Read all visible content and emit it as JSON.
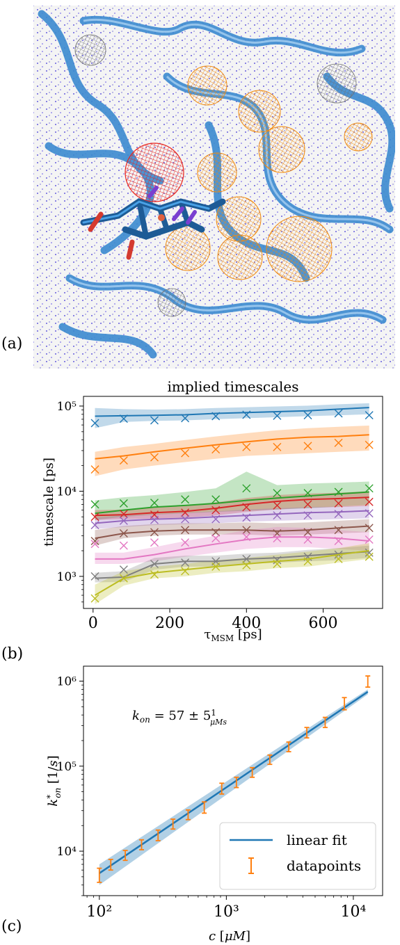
{
  "panels": {
    "a": "(a)",
    "b": "(b)",
    "c": "(c)"
  },
  "chart_data": [
    {
      "type": "line",
      "title": "implied timescales",
      "xlabel": "τ_MSM [ps]",
      "ylabel": "timescale [ps]",
      "xscale": "linear",
      "yscale": "log",
      "xlim": [
        -25,
        755
      ],
      "ylim": [
        420,
        130000
      ],
      "xticks": [
        0,
        200,
        400,
        600
      ],
      "xtick_labels": [
        "0",
        "200",
        "400",
        "600"
      ],
      "yticks": [
        1000,
        10000,
        100000
      ],
      "ytick_labels": [
        "10³",
        "10⁴",
        "10⁵"
      ],
      "x": [
        5,
        80,
        160,
        240,
        320,
        400,
        480,
        560,
        640,
        720
      ],
      "grid": false,
      "series": [
        {
          "color": "#1f77b4",
          "line": [
            76000,
            77000,
            78000,
            79000,
            82000,
            84000,
            86000,
            88000,
            92000,
            96000
          ],
          "lower": [
            55000,
            65000,
            67000,
            68000,
            70000,
            72000,
            74000,
            76000,
            78000,
            80000
          ],
          "upper": [
            95000,
            92000,
            91000,
            92000,
            95000,
            97000,
            99000,
            101000,
            105000,
            108000
          ],
          "markers": [
            63000,
            71000,
            68000,
            72000,
            76000,
            79000,
            77000,
            78000,
            82000,
            78000
          ]
        },
        {
          "color": "#ff7f0e",
          "line": [
            24000,
            26000,
            29000,
            32000,
            35000,
            38000,
            41000,
            43000,
            44000,
            46000
          ],
          "lower": [
            15000,
            18000,
            20000,
            22000,
            24000,
            26000,
            27000,
            28000,
            29000,
            30000
          ],
          "upper": [
            29000,
            33000,
            36000,
            40000,
            44000,
            48000,
            52000,
            55000,
            57000,
            59000
          ],
          "markers": [
            18000,
            23000,
            25000,
            28000,
            31000,
            33000,
            33000,
            34000,
            37000,
            35000
          ]
        },
        {
          "color": "#2ca02c",
          "line": [
            5500,
            6000,
            6500,
            6800,
            7200,
            7800,
            8300,
            8800,
            9300,
            9800
          ],
          "lower": [
            4600,
            5000,
            5300,
            5500,
            5700,
            5900,
            6100,
            6300,
            6600,
            6900
          ],
          "upper": [
            7800,
            8500,
            9000,
            9800,
            10800,
            17000,
            11800,
            12300,
            12600,
            13000
          ],
          "markers": [
            7000,
            7200,
            7300,
            8000,
            8000,
            10800,
            9500,
            9500,
            9800,
            10800
          ]
        },
        {
          "color": "#d62728",
          "line": [
            5200,
            5300,
            5600,
            5800,
            6300,
            7000,
            7600,
            8000,
            8200,
            8500
          ],
          "lower": [
            4600,
            4700,
            4800,
            4900,
            5200,
            5700,
            6100,
            6400,
            6500,
            6700
          ],
          "upper": [
            6000,
            6100,
            6400,
            6700,
            7400,
            8300,
            9000,
            9400,
            9600,
            10000
          ],
          "markers": [
            5000,
            5400,
            5300,
            5600,
            6000,
            6500,
            6800,
            7000,
            7200,
            7500
          ]
        },
        {
          "color": "#9467bd",
          "line": [
            4200,
            4500,
            4700,
            4800,
            5000,
            5200,
            5400,
            5600,
            5700,
            5900
          ],
          "lower": [
            3600,
            3800,
            4000,
            4100,
            4200,
            4400,
            4500,
            4600,
            4700,
            4800
          ],
          "upper": [
            4900,
            5200,
            5400,
            5600,
            5800,
            6100,
            6300,
            6500,
            6600,
            6800
          ],
          "markers": [
            4000,
            4500,
            4600,
            4700,
            4700,
            4900,
            5200,
            5200,
            5400,
            5500
          ]
        },
        {
          "color": "#8c564b",
          "line": [
            2800,
            3200,
            3400,
            3500,
            3500,
            3500,
            3400,
            3500,
            3700,
            3900
          ],
          "lower": [
            2300,
            2800,
            3000,
            3100,
            3100,
            3100,
            3000,
            3100,
            3200,
            3300
          ],
          "upper": [
            3500,
            3900,
            4100,
            4200,
            4200,
            4300,
            4200,
            4300,
            4500,
            4700
          ],
          "markers": [
            2600,
            3200,
            3300,
            3500,
            3300,
            3500,
            3200,
            3300,
            3500,
            3700
          ]
        },
        {
          "color": "#e377c2",
          "line": [
            1600,
            1600,
            1800,
            2100,
            2400,
            2700,
            2900,
            2900,
            2800,
            2600
          ],
          "lower": [
            1400,
            1400,
            1500,
            1700,
            1900,
            2100,
            2200,
            2200,
            2100,
            2000
          ],
          "upper": [
            1900,
            1900,
            2200,
            2600,
            3000,
            3500,
            3800,
            3700,
            3500,
            3300
          ],
          "markers": [
            2400,
            2300,
            2500,
            2500,
            2800,
            2900,
            2800,
            2700,
            2600,
            2700
          ]
        },
        {
          "color": "#7f7f7f",
          "line": [
            950,
            980,
            1400,
            1500,
            1500,
            1600,
            1650,
            1750,
            1850,
            1950
          ],
          "lower": [
            850,
            860,
            1200,
            1300,
            1300,
            1400,
            1450,
            1500,
            1550,
            1650
          ],
          "upper": [
            1100,
            1150,
            1650,
            1750,
            1750,
            1850,
            1900,
            2050,
            2150,
            2300
          ],
          "markers": [
            1000,
            1200,
            1400,
            1450,
            1500,
            1600,
            1550,
            1700,
            1800,
            1900
          ]
        },
        {
          "color": "#bcbd22",
          "line": [
            600,
            950,
            1100,
            1200,
            1300,
            1400,
            1500,
            1600,
            1800,
            2000
          ],
          "lower": [
            470,
            780,
            950,
            1000,
            1100,
            1150,
            1250,
            1300,
            1450,
            1600
          ],
          "upper": [
            800,
            1150,
            1300,
            1400,
            1550,
            1650,
            1800,
            1950,
            2150,
            2450
          ],
          "markers": [
            550,
            950,
            1050,
            1150,
            1300,
            1350,
            1400,
            1500,
            1600,
            1700
          ]
        }
      ]
    },
    {
      "type": "line",
      "title": "",
      "xlabel": "c [μM]",
      "ylabel": "k*_on [1/s]",
      "xscale": "log",
      "yscale": "log",
      "xlim": [
        75,
        17000
      ],
      "ylim": [
        3000,
        1500000
      ],
      "xticks": [
        100,
        1000,
        10000
      ],
      "xtick_labels": [
        "10²",
        "10³",
        "10⁴"
      ],
      "yticks": [
        10000,
        100000,
        1000000
      ],
      "ytick_labels": [
        "10⁴",
        "10⁵",
        "10⁶"
      ],
      "grid": false,
      "annotation": "k_on = 57 ± 5 1/(μMs)",
      "legend": {
        "position": "lower-right",
        "entries": [
          "linear fit",
          "datapoints"
        ]
      },
      "fit": {
        "name": "linear fit",
        "color": "#1f77b4",
        "x": [
          100,
          13000
        ],
        "y": [
          5500,
          750000
        ],
        "band_lower": [
          4000,
          700000
        ],
        "band_upper": [
          7000,
          800000
        ]
      },
      "datapoints": {
        "name": "datapoints",
        "color": "#ff7f0e",
        "x": [
          100,
          123,
          160,
          215,
          290,
          380,
          500,
          670,
          920,
          1200,
          1600,
          2200,
          3100,
          4300,
          6000,
          8500,
          13000
        ],
        "y": [
          5300,
          7000,
          9000,
          12000,
          15500,
          21000,
          27000,
          33000,
          55000,
          65000,
          85000,
          120000,
          170000,
          250000,
          330000,
          550000,
          1000000
        ],
        "err": [
          1000,
          1000,
          1200,
          1600,
          2200,
          2800,
          3500,
          5000,
          8000,
          9000,
          11000,
          15000,
          22000,
          35000,
          45000,
          90000,
          150000
        ]
      }
    }
  ]
}
